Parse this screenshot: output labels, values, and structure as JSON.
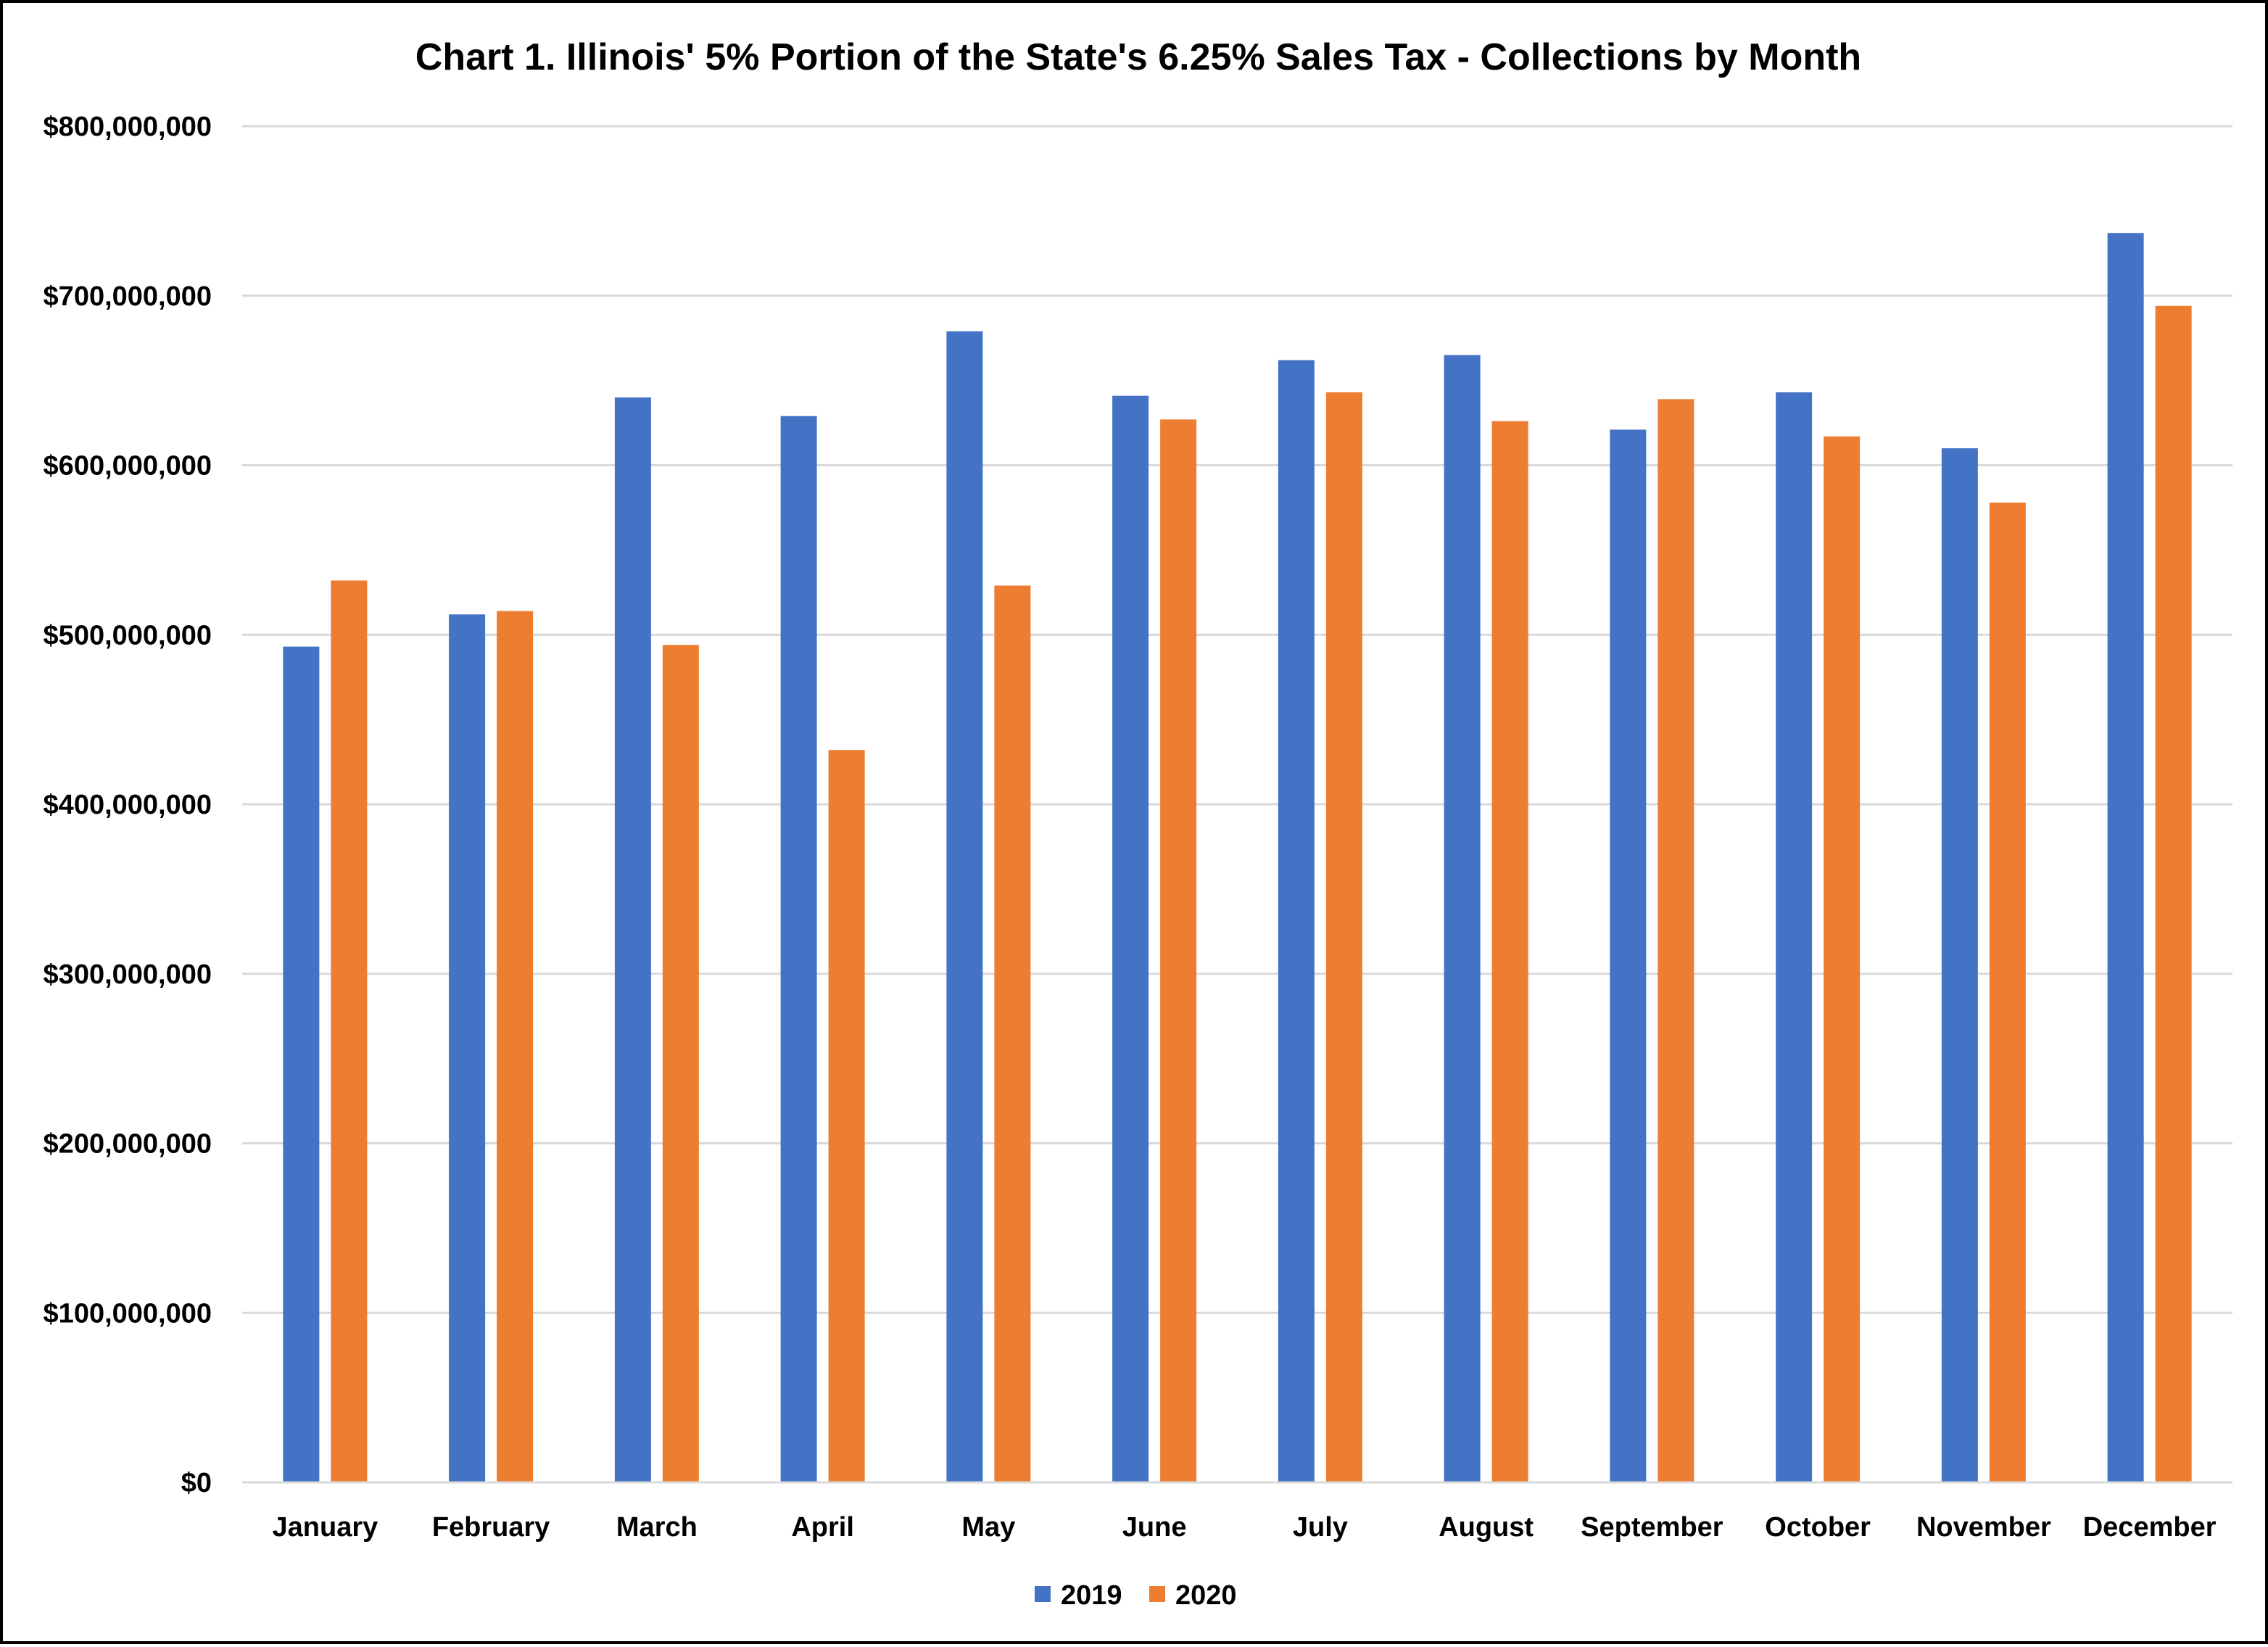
{
  "chart_data": {
    "type": "bar",
    "title": "Chart 1.  Illinois' 5% Portion of the State's 6.25% Sales Tax - Collections by Month",
    "xlabel": "",
    "ylabel": "",
    "categories": [
      "January",
      "February",
      "March",
      "April",
      "May",
      "June",
      "July",
      "August",
      "September",
      "October",
      "November",
      "December"
    ],
    "series": [
      {
        "name": "2019",
        "color": "#4472C4",
        "values": [
          493000000,
          512000000,
          640000000,
          629000000,
          679000000,
          641000000,
          662000000,
          665000000,
          621000000,
          643000000,
          610000000,
          737000000
        ]
      },
      {
        "name": "2020",
        "color": "#ED7D31",
        "values": [
          532000000,
          514000000,
          494000000,
          432000000,
          529000000,
          627000000,
          643000000,
          626000000,
          639000000,
          617000000,
          578000000,
          694000000
        ]
      }
    ],
    "ylim": [
      0,
      800000000
    ],
    "yticks": [
      0,
      100000000,
      200000000,
      300000000,
      400000000,
      500000000,
      600000000,
      700000000,
      800000000
    ],
    "ytick_labels": [
      "$0",
      "$100,000,000",
      "$200,000,000",
      "$300,000,000",
      "$400,000,000",
      "$500,000,000",
      "$600,000,000",
      "$700,000,000",
      "$800,000,000"
    ],
    "grid": true,
    "gridline_color": "#D9D9D9",
    "legend_position": "bottom-center"
  }
}
